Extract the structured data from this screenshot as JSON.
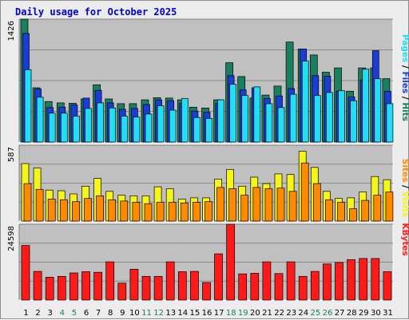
{
  "window": {
    "title": "Daily usage for October 2025"
  },
  "colors": {
    "hits": "#1a7f5e",
    "files": "#1a3cd8",
    "pages": "#22ddf5",
    "visits": "#f5f51c",
    "sites": "#ff8a00",
    "kbytes": "#ff1a1a",
    "weekend_tick": "#1a7f5e",
    "weekday_tick": "#000000",
    "plot_bg": "#c0c0c0"
  },
  "chart_data": [
    {
      "type": "bar",
      "title": "Daily usage for October 2025",
      "ymax_label": "1426",
      "ylim": [
        0,
        1426
      ],
      "categories": [
        "1",
        "2",
        "3",
        "4",
        "5",
        "6",
        "7",
        "8",
        "9",
        "10",
        "11",
        "12",
        "13",
        "14",
        "15",
        "16",
        "17",
        "18",
        "19",
        "20",
        "21",
        "22",
        "23",
        "24",
        "25",
        "26",
        "27",
        "28",
        "29",
        "30",
        "31"
      ],
      "series": [
        {
          "name": "Hits",
          "color": "#1a7f5e",
          "values": [
            1426,
            630,
            470,
            455,
            450,
            500,
            665,
            500,
            445,
            445,
            490,
            515,
            510,
            490,
            405,
            395,
            490,
            920,
            760,
            510,
            545,
            650,
            1160,
            1080,
            1010,
            810,
            860,
            590,
            860,
            860,
            735
          ]
        },
        {
          "name": "Files",
          "color": "#1a3cd8",
          "values": [
            1260,
            615,
            400,
            405,
            430,
            510,
            600,
            455,
            380,
            390,
            435,
            490,
            480,
            450,
            360,
            345,
            450,
            770,
            605,
            630,
            505,
            535,
            620,
            1080,
            770,
            765,
            590,
            525,
            720,
            1060,
            590
          ]
        },
        {
          "name": "Pages",
          "color": "#22ddf5",
          "values": [
            840,
            520,
            335,
            335,
            300,
            390,
            455,
            395,
            300,
            290,
            325,
            420,
            370,
            505,
            285,
            275,
            490,
            670,
            540,
            640,
            445,
            400,
            555,
            940,
            540,
            575,
            595,
            480,
            845,
            735,
            445
          ]
        }
      ]
    },
    {
      "type": "bar",
      "ymax_label": "587",
      "ylim": [
        0,
        587
      ],
      "categories": [
        "1",
        "2",
        "3",
        "4",
        "5",
        "6",
        "7",
        "8",
        "9",
        "10",
        "11",
        "12",
        "13",
        "14",
        "15",
        "16",
        "17",
        "18",
        "19",
        "20",
        "21",
        "22",
        "23",
        "24",
        "25",
        "26",
        "27",
        "28",
        "29",
        "30",
        "31"
      ],
      "series": [
        {
          "name": "Visits",
          "color": "#f5f51c",
          "values": [
            445,
            410,
            240,
            235,
            210,
            270,
            330,
            230,
            200,
            195,
            195,
            265,
            250,
            170,
            180,
            180,
            325,
            400,
            270,
            340,
            290,
            365,
            360,
            540,
            415,
            230,
            175,
            180,
            225,
            345,
            320
          ]
        },
        {
          "name": "Sites",
          "color": "#ff8a00",
          "values": [
            290,
            245,
            170,
            165,
            150,
            175,
            195,
            165,
            155,
            145,
            135,
            145,
            145,
            140,
            145,
            150,
            260,
            250,
            200,
            260,
            250,
            255,
            230,
            450,
            290,
            165,
            145,
            95,
            160,
            200,
            225
          ]
        }
      ]
    },
    {
      "type": "bar",
      "ymax_label": "24598",
      "ylim": [
        0,
        24598
      ],
      "categories": [
        "1",
        "2",
        "3",
        "4",
        "5",
        "6",
        "7",
        "8",
        "9",
        "10",
        "11",
        "12",
        "13",
        "14",
        "15",
        "16",
        "17",
        "18",
        "19",
        "20",
        "21",
        "22",
        "23",
        "24",
        "25",
        "26",
        "27",
        "28",
        "29",
        "30",
        "31"
      ],
      "series": [
        {
          "name": "KBytes",
          "color": "#ff1a1a",
          "values": [
            17700,
            9300,
            7400,
            7700,
            8800,
            9200,
            9000,
            12400,
            5500,
            10000,
            7700,
            7700,
            12400,
            9200,
            9300,
            5700,
            15000,
            24598,
            8500,
            8700,
            12400,
            8600,
            12400,
            7700,
            9300,
            11700,
            12200,
            13100,
            13500,
            13500,
            9200
          ]
        }
      ]
    }
  ],
  "legends": {
    "panel1": [
      {
        "text": "Pages",
        "color": "#22ddf5"
      },
      {
        "text": " / ",
        "color": "#000000"
      },
      {
        "text": "Files",
        "color": "#1a3cd8"
      },
      {
        "text": " / ",
        "color": "#000000"
      },
      {
        "text": "Hits",
        "color": "#1a7f5e"
      }
    ],
    "panel2": [
      {
        "text": "Sites",
        "color": "#ff8a00"
      },
      {
        "text": " / ",
        "color": "#000000"
      },
      {
        "text": "Visits",
        "color": "#f5f51c"
      }
    ],
    "panel3": [
      {
        "text": "KBytes",
        "color": "#ff1a1a"
      }
    ]
  },
  "weekend_days": [
    "4",
    "5",
    "11",
    "12",
    "18",
    "19",
    "25",
    "26"
  ]
}
